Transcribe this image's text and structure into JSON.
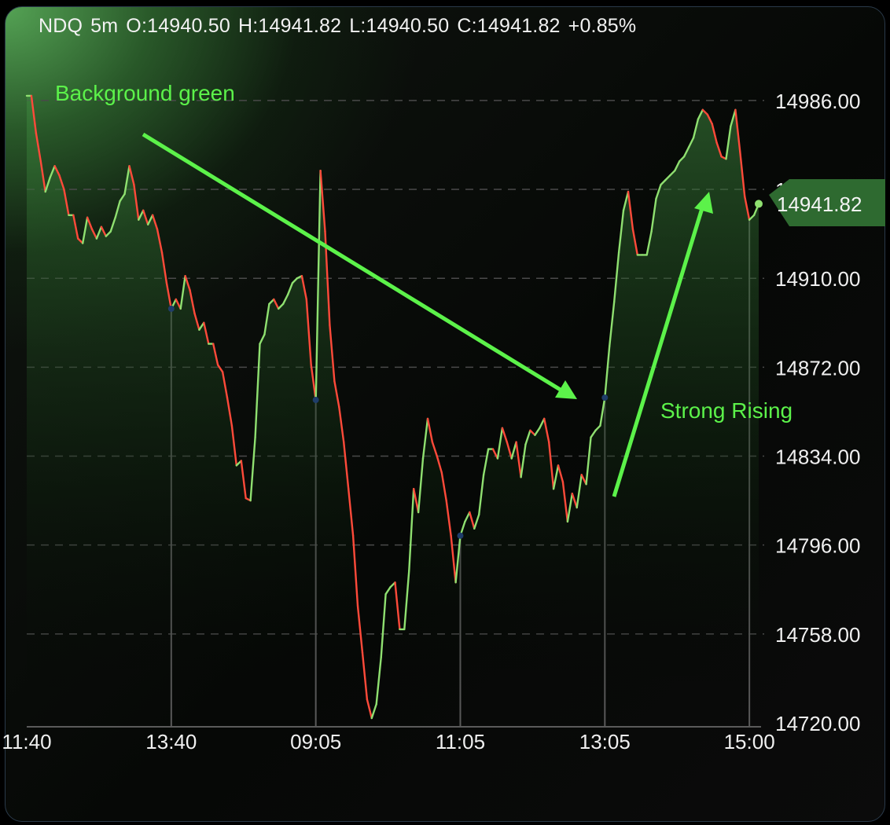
{
  "header": {
    "symbol": "NDQ",
    "interval": "5m",
    "open": "O:14940.50",
    "high": "H:14941.82",
    "low": "L:14940.50",
    "close": "C:14941.82",
    "change": "+0.85%"
  },
  "annotations": {
    "background_note": "Background green",
    "rising_note": "Strong Rising"
  },
  "colors": {
    "up": "#8fe070",
    "down": "#ff4a3a",
    "annotation": "#5cf24a",
    "last_price_tag": "#2e6a30"
  },
  "chart_data": {
    "type": "line",
    "title": "",
    "xlabel": "",
    "ylabel": "",
    "ylim": [
      14720,
      14992
    ],
    "y_ticks": [
      "14720.00",
      "14758.00",
      "14796.00",
      "14834.00",
      "14872.00",
      "14910.00",
      "14948.00",
      "14986.00"
    ],
    "x_ticks": [
      "11:40",
      "13:40",
      "09:05",
      "11:05",
      "13:05",
      "15:00"
    ],
    "x_tick_index": [
      0,
      31,
      62,
      93,
      124,
      155
    ],
    "last_price": "14941.82",
    "grid": "horizontal dashed",
    "series": [
      {
        "values": [
          14988,
          14988,
          14972,
          14960,
          14947,
          14953,
          14958,
          14954,
          14948,
          14937,
          14937,
          14927,
          14925,
          14936,
          14931,
          14927,
          14932,
          14928,
          14930,
          14936,
          14943,
          14946,
          14958,
          14950,
          14935,
          14939,
          14933,
          14937,
          14931,
          14921,
          14908,
          14897,
          14901,
          14897,
          14911,
          14905,
          14895,
          14888,
          14891,
          14882,
          14882,
          14873,
          14870,
          14859,
          14847,
          14830,
          14832,
          14816,
          14815,
          14842,
          14882,
          14886,
          14899,
          14901,
          14897,
          14899,
          14903,
          14908,
          14910,
          14911,
          14901,
          14873,
          14858,
          14956,
          14930,
          14890,
          14866,
          14855,
          14840,
          14820,
          14800,
          14770,
          14750,
          14730,
          14722,
          14728,
          14748,
          14775,
          14778,
          14780,
          14760,
          14760,
          14785,
          14820,
          14810,
          14833,
          14850,
          14840,
          14834,
          14827,
          14815,
          14800,
          14780,
          14800,
          14806,
          14810,
          14803,
          14809,
          14826,
          14837,
          14837,
          14833,
          14846,
          14840,
          14833,
          14840,
          14825,
          14839,
          14845,
          14843,
          14846,
          14850,
          14840,
          14820,
          14830,
          14823,
          14806,
          14818,
          14812,
          14826,
          14822,
          14842,
          14845,
          14847,
          14859,
          14881,
          14900,
          14921,
          14939,
          14947,
          14931,
          14920,
          14920,
          14920,
          14930,
          14944,
          14950,
          14952,
          14954,
          14956,
          14960,
          14962,
          14966,
          14970,
          14978,
          14982,
          14980,
          14976,
          14968,
          14962,
          14961,
          14975,
          14982,
          14964,
          14945,
          14935,
          14937,
          14941.82
        ]
      }
    ]
  }
}
